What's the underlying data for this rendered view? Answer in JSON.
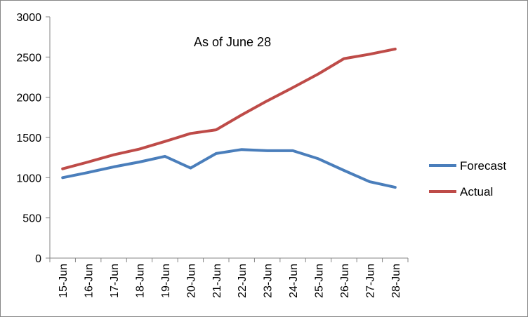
{
  "chart_data": {
    "type": "line",
    "title": "",
    "annotation": "As of June 28",
    "xlabel": "",
    "ylabel": "",
    "categories": [
      "15-Jun",
      "16-Jun",
      "17-Jun",
      "18-Jun",
      "19-Jun",
      "20-Jun",
      "21-Jun",
      "22-Jun",
      "23-Jun",
      "24-Jun",
      "25-Jun",
      "26-Jun",
      "27-Jun",
      "28-Jun"
    ],
    "ylim": [
      0,
      3000
    ],
    "yticks": [
      0,
      500,
      1000,
      1500,
      2000,
      2500,
      3000
    ],
    "grid": false,
    "legend_position": "right",
    "series": [
      {
        "name": "Forecast",
        "color": "#4a7ebb",
        "values": [
          1000,
          1065,
          1135,
          1195,
          1265,
          1120,
          1300,
          1350,
          1335,
          1335,
          1235,
          1090,
          950,
          880
        ]
      },
      {
        "name": "Actual",
        "color": "#be4b48",
        "values": [
          1110,
          1195,
          1285,
          1355,
          1450,
          1550,
          1595,
          1780,
          1955,
          2120,
          2290,
          2480,
          2535,
          2600
        ]
      }
    ]
  }
}
